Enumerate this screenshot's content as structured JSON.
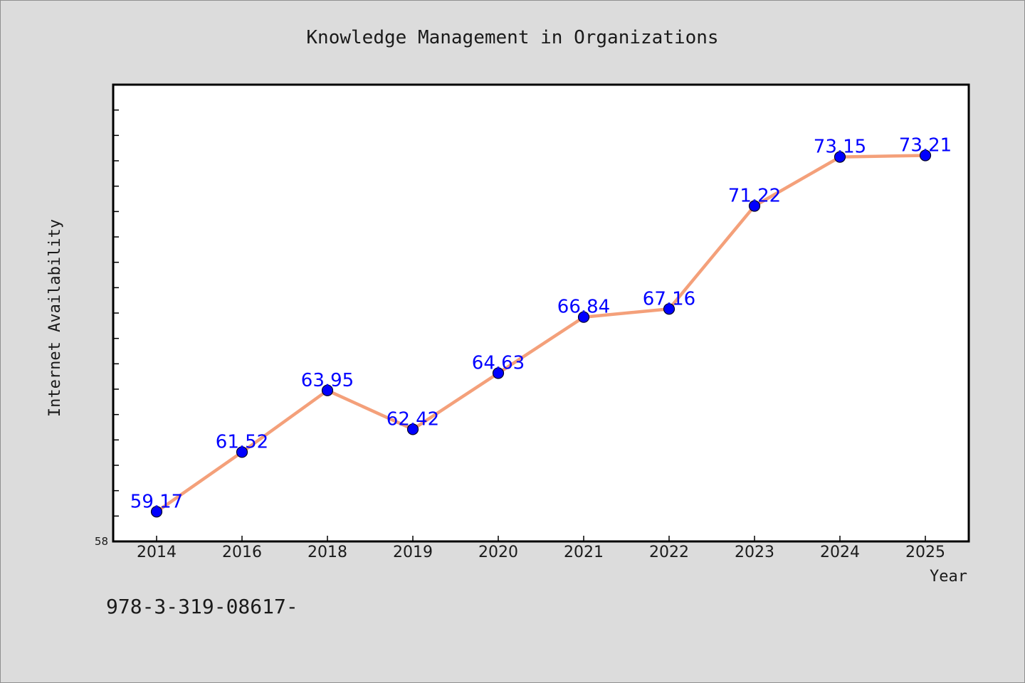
{
  "chart_data": {
    "type": "line",
    "title": "Knowledge Management in Organizations",
    "xlabel": "Year",
    "ylabel": "Internet Availability",
    "categories": [
      "2014",
      "2016",
      "2018",
      "2019",
      "2020",
      "2021",
      "2022",
      "2023",
      "2024",
      "2025"
    ],
    "values": [
      59.17,
      61.52,
      63.95,
      62.42,
      64.63,
      66.84,
      67.16,
      71.22,
      73.15,
      73.21
    ],
    "data_labels": [
      "59.17",
      "61.52",
      "63.95",
      "62.42",
      "64.63",
      "66.84",
      "67.16",
      "71.22",
      "73.15",
      "73.21"
    ],
    "ylim": [
      58,
      76
    ],
    "ytick_labels": [
      "58"
    ],
    "grid": false,
    "legend": "none",
    "colors": {
      "line": "#f4a07a",
      "marker": "#0000ff",
      "data_label": "#0000ff",
      "background": "#dcdcdc",
      "plot_background": "#ffffff"
    }
  },
  "footnote": "978-3-319-08617-"
}
